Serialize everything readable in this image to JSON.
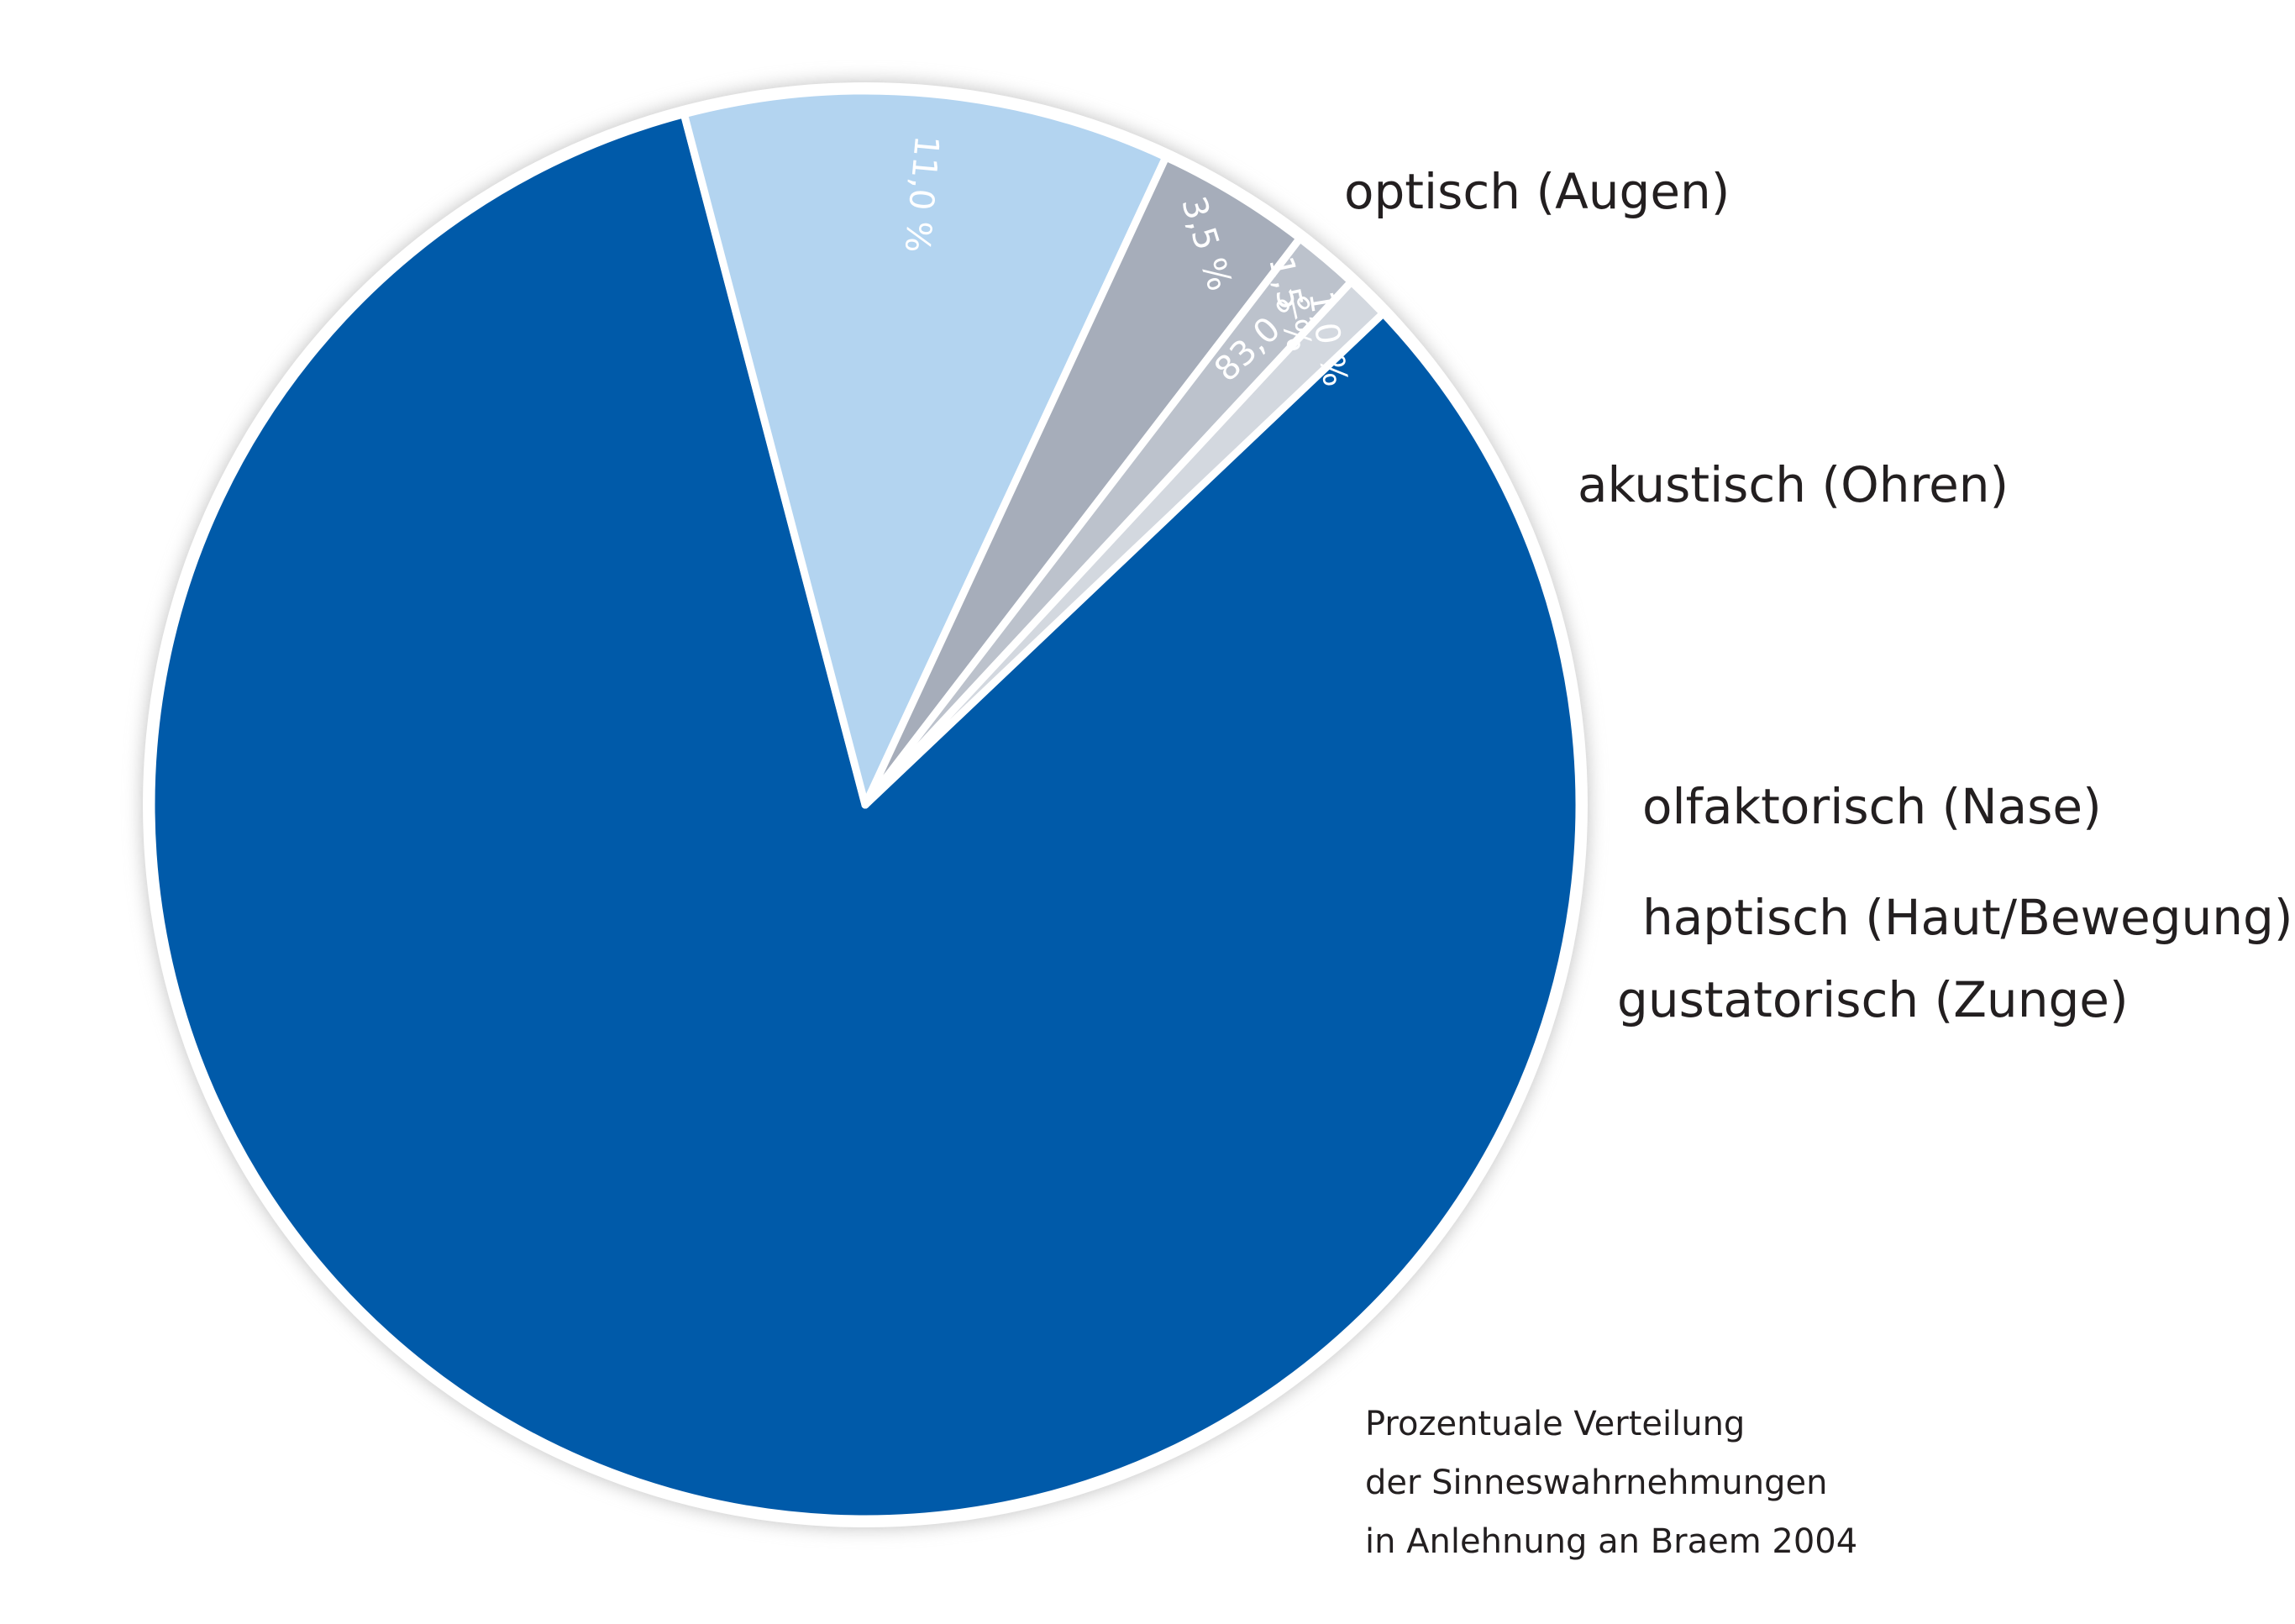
{
  "chart_data": {
    "type": "pie",
    "start_angle_deg": -43.5,
    "slices": [
      {
        "label": "optisch (Augen)",
        "value": 83.0,
        "value_label": "83,0 %",
        "color": "#005aa9"
      },
      {
        "label": "akustisch (Ohren)",
        "value": 11.0,
        "value_label": "11,0 %",
        "color": "#b3d4f0"
      },
      {
        "label": "olfaktorisch (Nase)",
        "value": 3.5,
        "value_label": "3,5 %",
        "color": "#a6adba"
      },
      {
        "label": "haptisch (Haut/Bewegung)",
        "value": 1.5,
        "value_label": "1,5 %",
        "color": "#bcc2cc"
      },
      {
        "label": "gustatorisch (Zunge)",
        "value": 1.0,
        "value_label": "1,0 %",
        "color": "#d3d8df"
      }
    ]
  },
  "caption": {
    "lines": [
      "Prozentuale Verteilung",
      "der Sinneswahrnehmungen",
      "in Anlehnung an Braem 2004"
    ]
  },
  "colors": {
    "separator": "#ffffff",
    "shadow": "#c8c8c8",
    "text": "#231f20"
  }
}
